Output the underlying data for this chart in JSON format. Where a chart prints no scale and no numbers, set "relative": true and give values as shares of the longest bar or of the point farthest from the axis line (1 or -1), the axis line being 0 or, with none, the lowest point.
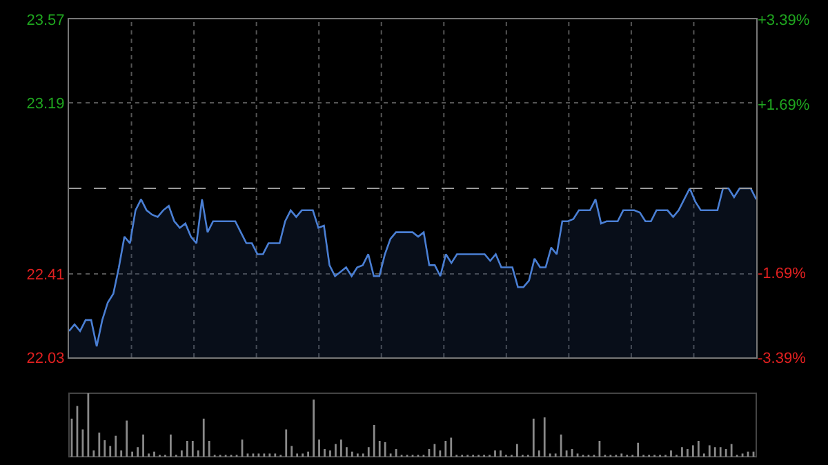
{
  "chart_data": [
    {
      "type": "area",
      "categories": [
        null,
        null,
        null,
        null,
        null,
        null,
        null,
        null,
        null,
        null,
        null,
        null,
        null,
        null,
        null,
        null,
        null,
        null,
        null,
        null,
        null,
        null,
        null,
        null,
        null,
        null,
        null,
        null,
        null,
        null,
        null,
        null,
        null,
        null,
        null,
        null,
        null,
        null,
        null,
        null,
        null,
        null,
        null,
        null,
        null,
        null,
        null,
        null,
        null,
        null,
        null,
        null,
        null,
        null,
        null,
        null,
        null,
        null,
        null,
        null,
        null,
        null,
        null,
        null,
        null,
        null,
        null,
        null,
        null,
        null,
        null,
        null,
        null,
        null,
        null,
        null,
        null,
        null,
        null,
        null,
        null,
        null,
        null,
        null,
        null,
        null,
        null,
        null,
        null,
        null,
        null,
        null,
        null,
        null,
        null,
        null,
        null,
        null,
        null,
        null,
        null,
        null,
        null,
        null,
        null,
        null,
        null,
        null,
        null,
        null,
        null,
        null,
        null,
        null,
        null,
        null,
        null,
        null,
        null,
        null,
        null,
        null,
        null,
        null,
        null
      ],
      "series": [
        {
          "color": "#4a7fd4",
          "values": [
            22.15,
            22.18,
            22.15,
            22.2,
            22.2,
            22.08,
            22.2,
            22.28,
            22.32,
            22.44,
            22.58,
            22.55,
            22.7,
            22.75,
            22.7,
            22.68,
            22.67,
            22.7,
            22.72,
            22.65,
            22.62,
            22.64,
            22.58,
            22.55,
            22.75,
            22.6,
            22.65,
            22.65,
            22.65,
            22.65,
            22.65,
            22.6,
            22.55,
            22.55,
            22.5,
            22.5,
            22.55,
            22.55,
            22.55,
            22.65,
            22.7,
            22.67,
            22.7,
            22.7,
            22.7,
            22.62,
            22.63,
            22.45,
            22.4,
            22.42,
            22.44,
            22.4,
            22.44,
            22.45,
            22.5,
            22.4,
            22.4,
            22.5,
            22.57,
            22.6,
            22.6,
            22.6,
            22.6,
            22.58,
            22.6,
            22.45,
            22.45,
            22.4,
            22.5,
            22.46,
            22.5,
            22.5,
            22.5,
            22.5,
            22.5,
            22.5,
            22.47,
            22.5,
            22.44,
            22.44,
            22.44,
            22.35,
            22.35,
            22.38,
            22.48,
            22.44,
            22.44,
            22.53,
            22.5,
            22.65,
            22.65,
            22.66,
            22.7,
            22.7,
            22.7,
            22.75,
            22.64,
            22.65,
            22.65,
            22.65,
            22.7,
            22.7,
            22.7,
            22.69,
            22.65,
            22.65,
            22.7,
            22.7,
            22.7,
            22.67,
            22.7,
            22.75,
            22.8,
            22.74,
            22.7,
            22.7,
            22.7,
            22.7,
            22.8,
            22.8,
            22.76,
            22.8,
            22.8,
            22.8,
            22.75
          ]
        }
      ],
      "ylim": [
        22.03,
        23.57
      ],
      "yticks": [
        22.03,
        22.41,
        23.19,
        23.57
      ],
      "y2lim": [
        -3.39,
        3.39
      ],
      "y2ticks": [
        {
          "value": -3.39,
          "label": "-3.39%"
        },
        {
          "value": -1.69,
          "label": "-1.69%"
        },
        {
          "value": 1.69,
          "label": "+1.69%"
        },
        {
          "value": 3.39,
          "label": "+3.39%"
        }
      ],
      "ref_lines": [
        {
          "axis": "y",
          "value": 22.8,
          "color": "#9a9a9a",
          "line_style": "dashed"
        }
      ],
      "grid": true
    },
    {
      "type": "bar",
      "relative": true,
      "categories": [
        null,
        null,
        null,
        null,
        null,
        null,
        null,
        null,
        null,
        null,
        null,
        null,
        null,
        null,
        null,
        null,
        null,
        null,
        null,
        null,
        null,
        null,
        null,
        null,
        null,
        null,
        null,
        null,
        null,
        null,
        null,
        null,
        null,
        null,
        null,
        null,
        null,
        null,
        null,
        null,
        null,
        null,
        null,
        null,
        null,
        null,
        null,
        null,
        null,
        null,
        null,
        null,
        null,
        null,
        null,
        null,
        null,
        null,
        null,
        null,
        null,
        null,
        null,
        null,
        null,
        null,
        null,
        null,
        null,
        null,
        null,
        null,
        null,
        null,
        null,
        null,
        null,
        null,
        null,
        null,
        null,
        null,
        null,
        null,
        null,
        null,
        null,
        null,
        null,
        null,
        null,
        null,
        null,
        null,
        null,
        null,
        null,
        null,
        null,
        null,
        null,
        null,
        null,
        null,
        null,
        null,
        null,
        null,
        null,
        null,
        null,
        null,
        null,
        null,
        null,
        null,
        null,
        null,
        null,
        null,
        null,
        null,
        null,
        null,
        null
      ],
      "color": "#8a8a8a",
      "values": [
        0.6,
        0.8,
        0.43,
        1.0,
        0.1,
        0.38,
        0.26,
        0.17,
        0.33,
        0.1,
        0.57,
        0.08,
        0.15,
        0.35,
        0.05,
        0.08,
        0.03,
        0.03,
        0.35,
        0.03,
        0.1,
        0.25,
        0.25,
        0.1,
        0.6,
        0.25,
        0.03,
        0.03,
        0.03,
        0.03,
        0.03,
        0.27,
        0.05,
        0.05,
        0.05,
        0.05,
        0.05,
        0.05,
        0.03,
        0.43,
        0.17,
        0.05,
        0.05,
        0.08,
        0.9,
        0.27,
        0.12,
        0.1,
        0.2,
        0.27,
        0.15,
        0.08,
        0.05,
        0.05,
        0.15,
        0.5,
        0.25,
        0.23,
        0.05,
        0.12,
        0.03,
        0.03,
        0.03,
        0.03,
        0.03,
        0.12,
        0.2,
        0.1,
        0.25,
        0.3,
        0.03,
        0.03,
        0.03,
        0.03,
        0.03,
        0.03,
        0.03,
        0.1,
        0.1,
        0.03,
        0.03,
        0.2,
        0.03,
        0.03,
        0.6,
        0.1,
        0.62,
        0.05,
        0.05,
        0.35,
        0.1,
        0.12,
        0.05,
        0.03,
        0.03,
        0.03,
        0.25,
        0.03,
        0.03,
        0.03,
        0.05,
        0.03,
        0.03,
        0.22,
        0.03,
        0.03,
        0.03,
        0.03,
        0.03,
        0.1,
        0.03,
        0.15,
        0.12,
        0.18,
        0.25,
        0.05,
        0.18,
        0.15,
        0.15,
        0.12,
        0.2,
        0.03,
        0.05,
        0.08,
        0.08
      ]
    }
  ]
}
